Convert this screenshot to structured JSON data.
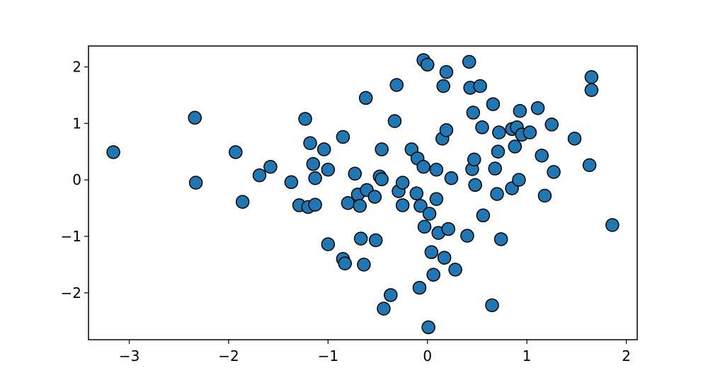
{
  "chart_data": {
    "type": "scatter",
    "x": [
      -3.16,
      -2.34,
      -2.33,
      -1.93,
      -1.86,
      -1.69,
      -1.58,
      -1.37,
      -1.29,
      -1.23,
      -1.2,
      -1.18,
      -1.15,
      -1.13,
      -1.13,
      -1.04,
      -1.0,
      -1.0,
      -0.85,
      -0.85,
      -0.83,
      -0.8,
      -0.73,
      -0.7,
      -0.68,
      -0.67,
      -0.64,
      -0.62,
      -0.61,
      -0.53,
      -0.52,
      -0.48,
      -0.46,
      -0.46,
      -0.44,
      -0.37,
      -0.33,
      -0.31,
      -0.29,
      -0.25,
      -0.25,
      -0.16,
      -0.11,
      -0.1,
      -0.08,
      -0.07,
      -0.04,
      -0.04,
      -0.03,
      0.0,
      0.01,
      0.02,
      0.04,
      0.06,
      0.09,
      0.09,
      0.11,
      0.15,
      0.16,
      0.17,
      0.19,
      0.19,
      0.21,
      0.24,
      0.28,
      0.4,
      0.42,
      0.43,
      0.45,
      0.46,
      0.47,
      0.48,
      0.53,
      0.55,
      0.56,
      0.65,
      0.66,
      0.68,
      0.7,
      0.71,
      0.72,
      0.74,
      0.85,
      0.85,
      0.88,
      0.9,
      0.92,
      0.93,
      0.95,
      1.03,
      1.11,
      1.15,
      1.18,
      1.25,
      1.27,
      1.48,
      1.63,
      1.65,
      1.65,
      1.86
    ],
    "values": [
      0.49,
      1.1,
      -0.05,
      0.49,
      -0.39,
      0.08,
      0.23,
      -0.04,
      -0.45,
      1.08,
      -0.48,
      0.65,
      0.28,
      -0.44,
      0.03,
      0.54,
      0.18,
      -1.14,
      0.76,
      -1.4,
      -1.48,
      -0.41,
      0.11,
      -0.26,
      -0.46,
      -1.04,
      -1.5,
      1.45,
      -0.18,
      -0.3,
      -1.07,
      0.06,
      0.54,
      0.01,
      -2.28,
      -2.04,
      1.04,
      1.68,
      -0.2,
      -0.05,
      -0.45,
      0.54,
      -0.24,
      0.38,
      -1.91,
      -0.46,
      2.12,
      0.23,
      -0.83,
      2.04,
      -2.61,
      -0.6,
      -1.28,
      -1.68,
      0.18,
      -0.34,
      -0.94,
      0.73,
      1.66,
      -1.38,
      0.88,
      1.91,
      -0.87,
      0.03,
      -1.59,
      -0.99,
      2.09,
      1.63,
      0.19,
      1.19,
      0.36,
      -0.09,
      1.66,
      0.93,
      -0.63,
      -2.22,
      1.34,
      0.2,
      -0.25,
      0.5,
      0.84,
      -1.05,
      0.9,
      -0.15,
      0.59,
      0.93,
      0.0,
      1.22,
      0.8,
      0.84,
      1.27,
      0.43,
      -0.28,
      0.98,
      0.14,
      0.73,
      0.26,
      1.59,
      1.82,
      -0.8
    ],
    "color": "#1f77b4",
    "edgecolor": "#000000",
    "xlim": [
      -3.41,
      2.11
    ],
    "ylim": [
      -2.83,
      2.37
    ],
    "xticks": [
      {
        "value": -3,
        "label": "−3"
      },
      {
        "value": -2,
        "label": "−2"
      },
      {
        "value": -1,
        "label": "−1"
      },
      0,
      1,
      2
    ],
    "yticks": [
      {
        "value": -2,
        "label": "−2"
      },
      {
        "value": -1,
        "label": "−1"
      },
      0,
      1,
      2
    ],
    "grid": false
  }
}
